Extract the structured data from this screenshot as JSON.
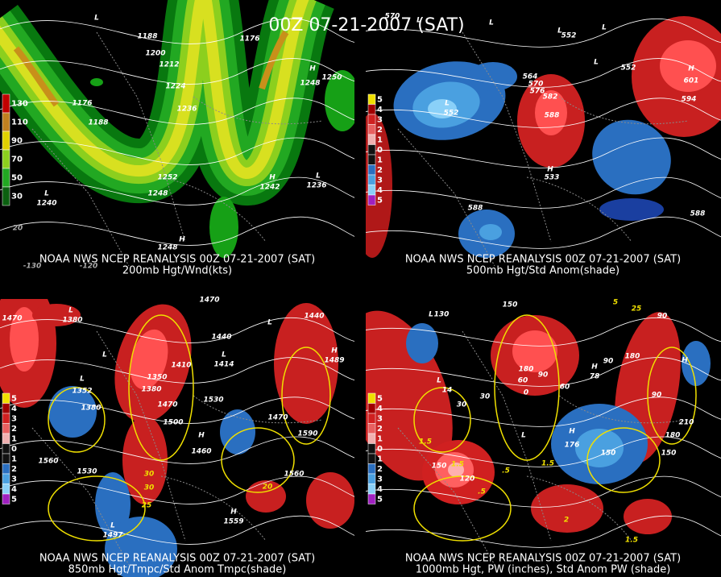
{
  "title": "00Z 07-21-2007 (SAT)",
  "panels": [
    {
      "caption_line1": "NOAA NWS NCEP REANALYSIS 00Z 07-21-2007 (SAT)",
      "caption_line2": "200mb Hgt/Wnd(kts)",
      "legend": [
        "130",
        "110",
        "90",
        "70",
        "50",
        "30"
      ],
      "labels": [
        "L",
        "1188",
        "1200",
        "1212",
        "1224",
        "1176",
        "1188",
        "1236",
        "H",
        "1250",
        "1248",
        "1252",
        "1248",
        "H",
        "1242",
        "L",
        "1236",
        "L",
        "1240",
        "1176",
        "H",
        "1248",
        "20",
        "-130",
        "-120"
      ]
    },
    {
      "caption_line1": "NOAA NWS NCEP REANALYSIS 00Z 07-21-2007 (SAT)",
      "caption_line2": "500mb Hgt/Std Anom(shade)",
      "legend": [
        "5",
        "4",
        "3",
        "2",
        "1",
        "0",
        "1",
        "2",
        "3",
        "4",
        "5"
      ],
      "labels": [
        "570",
        "L",
        "L",
        "L",
        "552",
        "L",
        "L",
        "552",
        "564",
        "570",
        "576",
        "582",
        "588",
        "L",
        "552",
        "H",
        "601",
        "594",
        "H",
        "533",
        "588",
        "588"
      ]
    },
    {
      "caption_line1": "NOAA NWS NCEP REANALYSIS 00Z 07-21-2007 (SAT)",
      "caption_line2": "850mb Hgt/Tmpc/Std Anom Tmpc(shade)",
      "legend": [
        "5",
        "4",
        "3",
        "2",
        "1",
        "0",
        "1",
        "2",
        "3",
        "4",
        "5"
      ],
      "labels": [
        "1470",
        "1470",
        "L",
        "1380",
        "L",
        "1440",
        "1440",
        "L",
        "1410",
        "1350",
        "1380",
        "1470",
        "1530",
        "1500",
        "L",
        "1352",
        "1380",
        "L",
        "1414",
        "H",
        "1489",
        "1560",
        "1590",
        "1530",
        "1560",
        "H",
        "1460",
        "30",
        "30",
        "25",
        "20",
        "L",
        "1497",
        "H",
        "1559",
        "1470"
      ]
    },
    {
      "caption_line1": "NOAA NWS NCEP REANALYSIS 00Z 07-21-2007 (SAT)",
      "caption_line2": "1000mb Hgt, PW (inches), Std Anom PW (shade)",
      "legend": [
        "5",
        "4",
        "3",
        "2",
        "1",
        "0",
        "1",
        "2",
        "3",
        "4",
        "5"
      ],
      "labels": [
        "150",
        "L",
        "130",
        "L",
        "14",
        "30",
        "30",
        "180",
        "60",
        "0",
        "90",
        "60",
        "L",
        "H",
        "176",
        "150",
        "150",
        "120",
        "1.5",
        "1.5",
        "1.5",
        ".5",
        ".5",
        "2",
        "1.5",
        "H",
        "78",
        "180",
        "90",
        "90",
        "210",
        "180",
        "150",
        "H",
        "90",
        "25",
        "5"
      ]
    }
  ]
}
